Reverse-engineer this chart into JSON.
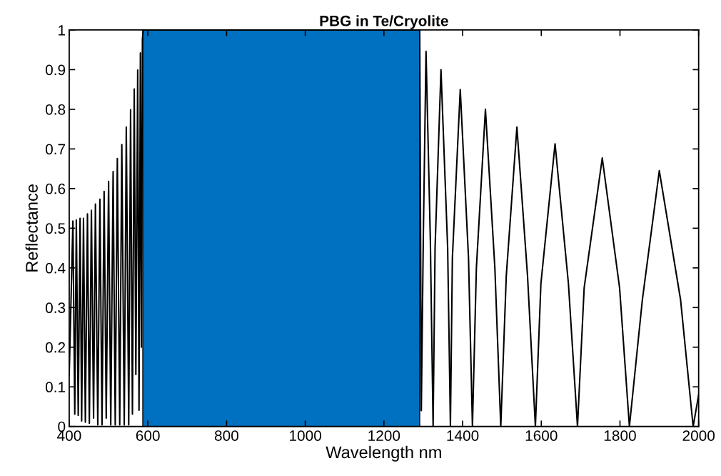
{
  "chart_data": {
    "type": "line",
    "title": "PBG in Te/Cryolite",
    "xlabel": "Wavelength nm",
    "ylabel": "Reflectance",
    "series": [
      {
        "color": "#000000",
        "x": [
          400,
          409.4,
          414.1,
          418.1,
          422.9,
          427.6,
          431.6,
          436.3,
          441.0,
          446.4,
          451.2,
          456.4,
          461.9,
          466.6,
          472.6,
          478.0,
          483.4,
          488.7,
          494.1,
          500.1,
          505.6,
          511.6,
          517.0,
          522.3,
          528.4,
          533.7,
          539.9,
          545.1,
          551.3,
          556.0,
          560.7,
          565.3,
          569.4,
          574.1,
          577.4,
          580.9,
          583.5,
          586.1,
          588,
          1290,
          1291,
          1295,
          1300,
          1307,
          1318,
          1325,
          1330,
          1345,
          1362,
          1369,
          1374,
          1394,
          1415,
          1425,
          1435,
          1458,
          1482,
          1497,
          1511,
          1538,
          1565,
          1585,
          1599,
          1635,
          1669,
          1692,
          1709,
          1755,
          1799,
          1824,
          1857,
          1900,
          1954,
          1986,
          2000
        ],
        "values": [
          0.13,
          0.518,
          0.031,
          0.521,
          0.028,
          0.525,
          0.014,
          0.525,
          0.011,
          0.536,
          0.008,
          0.545,
          0.021,
          0.561,
          0.004,
          0.573,
          0.004,
          0.593,
          0.021,
          0.618,
          0.004,
          0.643,
          0.004,
          0.676,
          0.004,
          0.711,
          0.004,
          0.755,
          0.004,
          0.799,
          0.031,
          0.851,
          0.131,
          0.899,
          0.041,
          0.942,
          0.2,
          0.977,
          1,
          1,
          1,
          0.04,
          0.47,
          0.946,
          0.47,
          0,
          0.45,
          0.9,
          0.45,
          0,
          0.425,
          0.85,
          0.425,
          0,
          0.4,
          0.8,
          0.4,
          0,
          0.38,
          0.755,
          0.38,
          0,
          0.36,
          0.713,
          0.36,
          0,
          0.35,
          0.677,
          0.35,
          0,
          0.32,
          0.645,
          0.32,
          0,
          0.08
        ]
      }
    ],
    "bands": [
      {
        "axis": "x",
        "from": 587,
        "to": 1291,
        "color": "#0070c0"
      }
    ],
    "xlim": [
      400,
      2000
    ],
    "xticks": [
      400,
      600,
      800,
      1000,
      1200,
      1400,
      1600,
      1800,
      2000
    ],
    "ylim": [
      0,
      1
    ],
    "yticks": [
      0,
      0.1,
      0.2,
      0.3,
      0.4,
      0.5,
      0.6,
      0.7,
      0.8,
      0.9,
      1
    ],
    "grid": false,
    "legend": false,
    "marker": "none",
    "line_style": "solid"
  }
}
